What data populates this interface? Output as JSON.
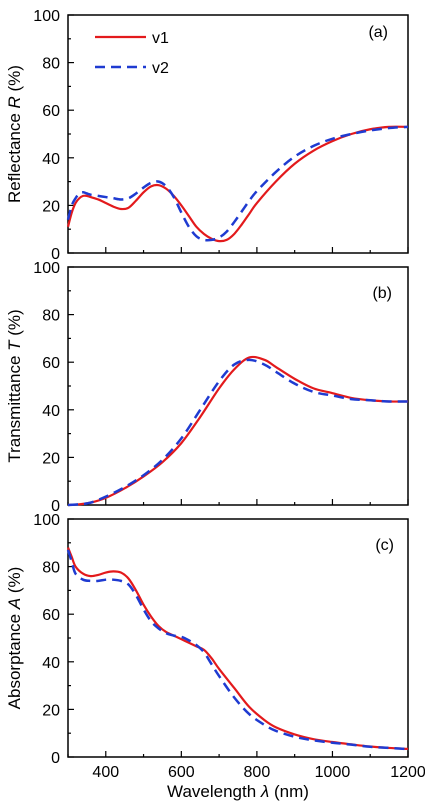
{
  "chart_data": [
    {
      "type": "line",
      "panel_label": "(a)",
      "ylabel_prefix": "Reflectance ",
      "ylabel_var": "R",
      "ylabel_unit": " (%)",
      "xlim": [
        300,
        1200
      ],
      "ylim": [
        0,
        100
      ],
      "yticks": [
        0,
        20,
        40,
        60,
        80,
        100
      ],
      "legend": {
        "placement": "top-left"
      },
      "series": [
        {
          "name": "v1",
          "color": "#e31a1c",
          "dash": "solid",
          "x": [
            300,
            310,
            320,
            330,
            340,
            350,
            360,
            380,
            400,
            420,
            440,
            460,
            480,
            500,
            520,
            540,
            560,
            580,
            600,
            620,
            640,
            660,
            680,
            700,
            720,
            740,
            760,
            780,
            800,
            850,
            900,
            950,
            1000,
            1050,
            1100,
            1150,
            1200
          ],
          "y": [
            11,
            17,
            21,
            23,
            24,
            24,
            23.5,
            22.5,
            21,
            19.5,
            18.5,
            19,
            22,
            25.5,
            28,
            28.5,
            27,
            24,
            20,
            15.5,
            11,
            8,
            6,
            5,
            5.5,
            8,
            12,
            16.5,
            21,
            30,
            37.5,
            43,
            47,
            50,
            52,
            53,
            53
          ]
        },
        {
          "name": "v2",
          "color": "#1f3bd1",
          "dash": "dashed",
          "x": [
            300,
            310,
            320,
            330,
            340,
            350,
            360,
            380,
            400,
            420,
            440,
            460,
            480,
            500,
            520,
            540,
            560,
            580,
            600,
            620,
            640,
            660,
            680,
            700,
            720,
            740,
            760,
            780,
            800,
            850,
            900,
            950,
            1000,
            1050,
            1100,
            1150,
            1200
          ],
          "y": [
            14,
            20,
            23,
            25,
            25.5,
            25,
            24.5,
            24,
            23.5,
            23,
            22.5,
            23,
            25,
            27.5,
            29.5,
            30,
            28,
            23.5,
            17,
            11,
            7,
            5.5,
            5.5,
            6.5,
            9,
            13,
            17.5,
            22,
            26,
            34,
            40.5,
            45,
            48,
            50,
            51.5,
            52.5,
            53
          ]
        }
      ]
    },
    {
      "type": "line",
      "panel_label": "(b)",
      "ylabel_prefix": "Transmittance ",
      "ylabel_var": "T",
      "ylabel_unit": " (%)",
      "xlim": [
        300,
        1200
      ],
      "ylim": [
        0,
        100
      ],
      "yticks": [
        0,
        20,
        40,
        60,
        80,
        100
      ],
      "series": [
        {
          "name": "v1",
          "color": "#e31a1c",
          "dash": "solid",
          "x": [
            300,
            330,
            360,
            400,
            450,
            500,
            550,
            600,
            650,
            700,
            740,
            780,
            820,
            850,
            900,
            950,
            1000,
            1050,
            1100,
            1150,
            1200
          ],
          "y": [
            0,
            0.3,
            1,
            3,
            7,
            12,
            18,
            26,
            37,
            49,
            57,
            62,
            61,
            58,
            53,
            49,
            47,
            45,
            44,
            43.5,
            43.5
          ]
        },
        {
          "name": "v2",
          "color": "#1f3bd1",
          "dash": "dashed",
          "x": [
            300,
            330,
            360,
            400,
            450,
            500,
            550,
            600,
            650,
            700,
            740,
            780,
            820,
            850,
            900,
            950,
            1000,
            1050,
            1100,
            1150,
            1200
          ],
          "y": [
            0,
            0.3,
            1,
            3.5,
            7.5,
            12.5,
            19,
            28,
            40,
            52,
            59,
            61,
            59,
            56,
            51,
            47.5,
            46,
            44.5,
            44,
            43.5,
            43.5
          ]
        }
      ]
    },
    {
      "type": "line",
      "panel_label": "(c)",
      "ylabel_prefix": "Absorptance ",
      "ylabel_var": "A",
      "ylabel_unit": " (%)",
      "xlabel_prefix": "Wavelength ",
      "xlabel_var": "λ",
      "xlabel_unit": " (nm)",
      "xlim": [
        300,
        1200
      ],
      "ylim": [
        0,
        100
      ],
      "yticks": [
        0,
        20,
        40,
        60,
        80,
        100
      ],
      "xticks": [
        400,
        600,
        800,
        1000,
        1200
      ],
      "series": [
        {
          "name": "v1",
          "color": "#e31a1c",
          "dash": "solid",
          "x": [
            300,
            310,
            320,
            340,
            360,
            380,
            400,
            420,
            440,
            460,
            480,
            500,
            520,
            540,
            560,
            580,
            600,
            620,
            640,
            660,
            680,
            700,
            740,
            780,
            820,
            850,
            900,
            950,
            1000,
            1050,
            1100,
            1150,
            1200
          ],
          "y": [
            88,
            84,
            80,
            77,
            76,
            76.5,
            77.5,
            78,
            77.5,
            75,
            70,
            64,
            59,
            55,
            52.5,
            51,
            49.5,
            48,
            46.5,
            45,
            41.5,
            37,
            29,
            21,
            15.5,
            12.5,
            9.5,
            7.5,
            6.3,
            5.3,
            4.4,
            3.8,
            3.4
          ]
        },
        {
          "name": "v2",
          "color": "#1f3bd1",
          "dash": "dashed",
          "x": [
            300,
            310,
            320,
            340,
            360,
            380,
            400,
            420,
            440,
            460,
            480,
            500,
            520,
            540,
            560,
            580,
            600,
            620,
            640,
            660,
            680,
            700,
            740,
            780,
            820,
            850,
            900,
            950,
            1000,
            1050,
            1100,
            1150,
            1200
          ],
          "y": [
            87,
            82,
            77,
            74.5,
            74,
            74,
            74.5,
            74.5,
            74,
            72.5,
            68,
            62,
            57,
            54,
            52,
            51,
            50.5,
            49,
            47,
            44,
            39,
            34,
            25,
            18,
            13.5,
            11,
            8.5,
            7,
            6,
            5.2,
            4.3,
            3.8,
            3.3
          ]
        }
      ]
    }
  ]
}
